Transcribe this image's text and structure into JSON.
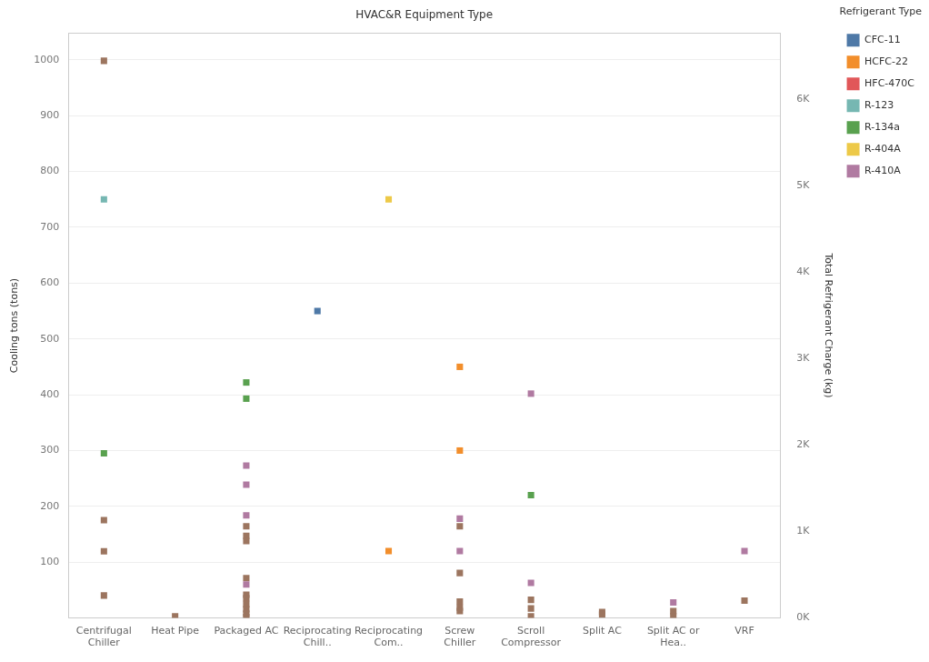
{
  "chart_data": {
    "type": "scatter",
    "title": "HVAC&R Equipment Type",
    "ylabel": "Cooling tons (tons)",
    "y2label": "Total Refrigerant Charge (kg)",
    "legend_title": "Refrigerant Type",
    "categories": [
      "Centrifugal Chiller",
      "Heat Pipe",
      "Packaged AC",
      "Reciprocating Chill..",
      "Reciprocating Com..",
      "Screw Chiller",
      "Scroll Compressor",
      "Split AC",
      "Split AC or Hea..",
      "VRF"
    ],
    "ylim": [
      0,
      1048
    ],
    "yticks": [
      100,
      200,
      300,
      400,
      500,
      600,
      700,
      800,
      900,
      1000
    ],
    "y2lim": [
      0,
      6760
    ],
    "y2ticks": [
      {
        "value": 0,
        "label": "0K"
      },
      {
        "value": 1000,
        "label": "1K"
      },
      {
        "value": 2000,
        "label": "2K"
      },
      {
        "value": 3000,
        "label": "3K"
      },
      {
        "value": 4000,
        "label": "4K"
      },
      {
        "value": 5000,
        "label": "5K"
      },
      {
        "value": 6000,
        "label": "6K"
      }
    ],
    "grid": "y",
    "legend": "top right",
    "marker": "square",
    "series": [
      {
        "name": "CFC-11",
        "color": "#4e79a7",
        "x": [
          "Reciprocating Chill.."
        ],
        "values": [
          550
        ]
      },
      {
        "name": "HCFC-22",
        "color": "#f28e2b",
        "x": [
          "Reciprocating Com..",
          "Screw Chiller",
          "Screw Chiller"
        ],
        "values": [
          120,
          450,
          300
        ]
      },
      {
        "name": "HFC-470C",
        "color": "#e15759",
        "values": [
          null,
          null,
          null,
          null,
          null,
          null,
          null,
          null,
          null,
          null
        ]
      },
      {
        "name": "R-123",
        "color": "#76b7b2",
        "x": [
          "Centrifugal Chiller"
        ],
        "values": [
          750
        ]
      },
      {
        "name": "R-134a",
        "color": "#59a14f",
        "x": [
          "Centrifugal Chiller",
          "Packaged AC",
          "Packaged AC",
          "Scroll Compressor"
        ],
        "values": [
          295,
          422,
          393,
          220
        ]
      },
      {
        "name": "R-404A",
        "color": "#edc948",
        "x": [
          "Reciprocating Com.."
        ],
        "values": [
          750
        ]
      },
      {
        "name": "R-410A",
        "color": "#b07aa1",
        "x": [
          "Packaged AC",
          "Packaged AC",
          "Packaged AC",
          "Packaged AC",
          "Screw Chiller",
          "Screw Chiller",
          "Scroll Compressor",
          "Scroll Compressor",
          "Split AC or Hea..",
          "VRF"
        ],
        "values": [
          273,
          239,
          184,
          60,
          178,
          120,
          402,
          63,
          28,
          120
        ]
      },
      {
        "color": "#9c755f",
        "axis": "y2",
        "x": [
          "Centrifugal Chiller",
          "Centrifugal Chiller",
          "Centrifugal Chiller",
          "Centrifugal Chiller",
          "Heat Pipe",
          "Packaged AC",
          "Packaged AC",
          "Packaged AC",
          "Packaged AC",
          "Packaged AC",
          "Packaged AC",
          "Packaged AC",
          "Packaged AC",
          "Packaged AC",
          "Packaged AC",
          "Screw Chiller",
          "Screw Chiller",
          "Screw Chiller",
          "Screw Chiller",
          "Screw Chiller",
          "Scroll Compressor",
          "Scroll Compressor",
          "Scroll Compressor",
          "Split AC",
          "Split AC",
          "Split AC or Hea..",
          "Split AC or Hea..",
          "VRF"
        ],
        "values": [
          6440,
          1130,
          770,
          260,
          20,
          1060,
          950,
          890,
          460,
          270,
          230,
          160,
          100,
          50,
          10,
          1060,
          520,
          190,
          120,
          80,
          210,
          110,
          20,
          70,
          40,
          80,
          20,
          200
        ]
      }
    ]
  }
}
